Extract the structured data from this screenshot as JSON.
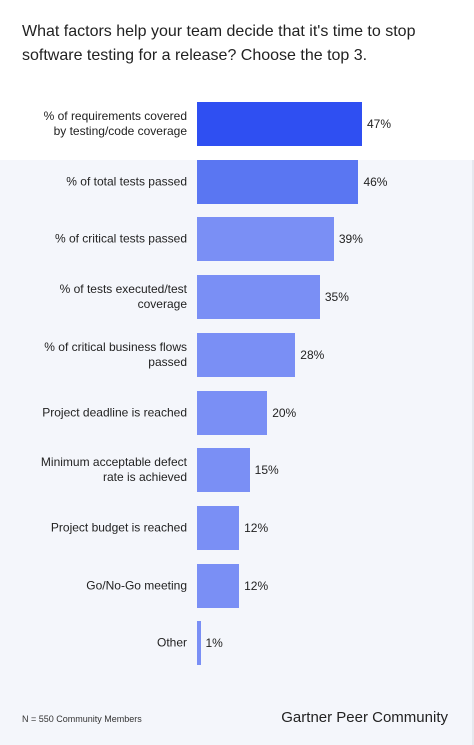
{
  "chart_data": {
    "type": "bar",
    "orientation": "horizontal",
    "title": "What factors help your team decide that it's time to stop software testing for a release? Choose the top 3.",
    "categories": [
      "% of requirements covered by testing/code coverage",
      "% of total tests passed",
      "% of critical tests passed",
      "% of tests executed/test coverage",
      "% of critical business flows passed",
      "Project deadline is reached",
      "Minimum acceptable defect rate is achieved",
      "Project budget is reached",
      "Go/No-Go meeting",
      "Other"
    ],
    "values": [
      47,
      46,
      39,
      35,
      28,
      20,
      15,
      12,
      12,
      1
    ],
    "value_labels": [
      "47%",
      "46%",
      "39%",
      "35%",
      "28%",
      "20%",
      "15%",
      "12%",
      "12%",
      "1%"
    ],
    "colors": [
      "#2f4ff2",
      "#5a76f2",
      "#7a8ff5",
      "#7a8ff5",
      "#7a8ff5",
      "#7a8ff5",
      "#7a8ff5",
      "#7a8ff5",
      "#7a8ff5",
      "#7a8ff5"
    ],
    "note": "N = 550 Community Members",
    "source": "Gartner Peer Community"
  }
}
